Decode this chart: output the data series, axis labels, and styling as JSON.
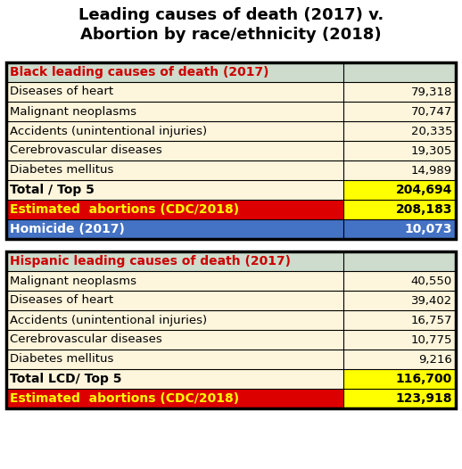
{
  "title_line1": "Leading causes of death (2017) v.",
  "title_line2": "Abortion by race/ethnicity (2018)",
  "black_section": {
    "header_label": "Black leading causes of death (2017)",
    "header_bg": "#cddccd",
    "header_text_color": "#cc0000",
    "rows": [
      {
        "label": "Diseases of heart",
        "value": "79,318"
      },
      {
        "label": "Malignant neoplasms",
        "value": "70,747"
      },
      {
        "label": "Accidents (unintentional injuries)",
        "value": "20,335"
      },
      {
        "label": "Cerebrovascular diseases",
        "value": "19,305"
      },
      {
        "label": "Diabetes mellitus",
        "value": "14,989"
      }
    ],
    "total_row": {
      "label": "Total / Top 5",
      "value": "204,694",
      "label_bg": "#fdf5dc",
      "value_bg": "#ffff00",
      "text_color": "#000000"
    },
    "abortion_row": {
      "label": "Estimated  abortions (CDC/2018)",
      "value": "208,183",
      "bg": "#dd0000",
      "value_bg": "#ffff00",
      "text_color": "#ffff00",
      "value_color": "#000000"
    },
    "homicide_row": {
      "label": "Homicide (2017)",
      "value": "10,073",
      "bg": "#4472c4",
      "text_color": "#ffffff"
    }
  },
  "hispanic_section": {
    "header_label": "Hispanic leading causes of death (2017)",
    "header_bg": "#cddccd",
    "header_text_color": "#cc0000",
    "rows": [
      {
        "label": "Malignant neoplasms",
        "value": "40,550"
      },
      {
        "label": "Diseases of heart",
        "value": "39,402"
      },
      {
        "label": "Accidents (unintentional injuries)",
        "value": "16,757"
      },
      {
        "label": "Cerebrovascular diseases",
        "value": "10,775"
      },
      {
        "label": "Diabetes mellitus",
        "value": "9,216"
      }
    ],
    "total_row": {
      "label": "Total LCD/ Top 5",
      "value": "116,700",
      "label_bg": "#fdf5dc",
      "value_bg": "#ffff00",
      "text_color": "#000000"
    },
    "abortion_row": {
      "label": "Estimated  abortions (CDC/2018)",
      "value": "123,918",
      "bg": "#dd0000",
      "value_bg": "#ffff00",
      "text_color": "#ffff00",
      "value_color": "#000000"
    }
  },
  "row_bg_normal": "#fdf5dc",
  "row_text_color": "#000000",
  "border_color": "#000000",
  "outer_bg": "#ffffff",
  "title_fontsize": 13,
  "header_fontsize": 10,
  "row_fontsize": 9.5,
  "total_fontsize": 10
}
